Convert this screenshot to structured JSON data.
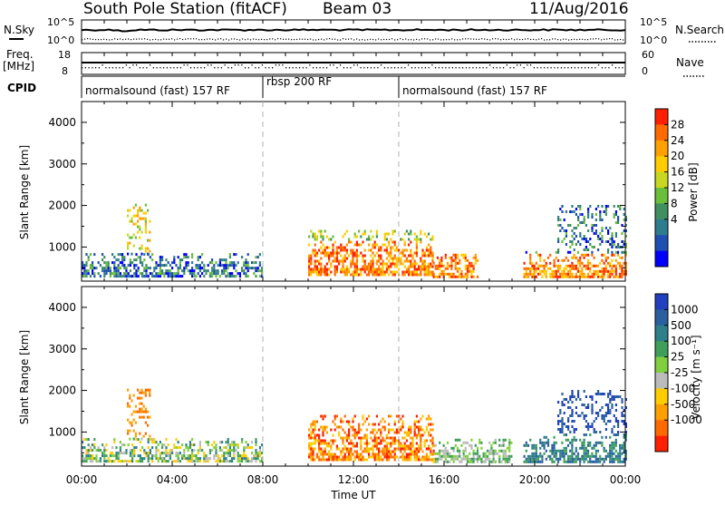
{
  "header": {
    "station": "South Pole Station (fitACF)",
    "beam": "Beam 03",
    "date": "11/Aug/2016"
  },
  "strips": {
    "nsky_label": "N.Sky",
    "nsearch_label": "N.Search",
    "nsky_ticks": [
      "10^5",
      "10^0"
    ],
    "nsearch_ticks": [
      "10^5",
      "10^0"
    ],
    "freq_label_1": "Freq.",
    "freq_label_2": "[MHz]",
    "freq_ticks": [
      "18",
      "8"
    ],
    "nave_label": "Nave",
    "nave_ticks": [
      "60",
      "0"
    ],
    "cpid_label": "CPID",
    "cpid_segments": [
      {
        "label": "normalsound (fast) 157 RF",
        "start_hour": 0,
        "end_hour": 8
      },
      {
        "label": "rbsp 200 RF",
        "start_hour": 8,
        "end_hour": 14
      },
      {
        "label": "normalsound (fast) 157 RF",
        "start_hour": 14,
        "end_hour": 24
      }
    ]
  },
  "chart_data": [
    {
      "type": "heatmap",
      "name": "power",
      "ylabel": "Slant Range [km]",
      "xlabel": "",
      "yticks": [
        1000,
        2000,
        3000,
        4000
      ],
      "ylim": [
        180,
        4500
      ],
      "xlim": [
        0,
        24
      ],
      "colorbar": {
        "label": "Power [dB]",
        "ticks": [
          "4",
          "8",
          "12",
          "16",
          "20",
          "24",
          "28"
        ],
        "colors": [
          "#0000ff",
          "#1f4fb0",
          "#2e7d8f",
          "#3f8f5f",
          "#6abe3a",
          "#c8d820",
          "#ffcc00",
          "#ffa000",
          "#ff6a00",
          "#ff2000"
        ]
      },
      "echo_regions": [
        {
          "start_hour": 0.0,
          "end_hour": 8.0,
          "range_min_km": 200,
          "range_max_km": 800,
          "dominant_level": "4-12 dB"
        },
        {
          "start_hour": 2.0,
          "end_hour": 3.0,
          "range_min_km": 800,
          "range_max_km": 2000,
          "dominant_level": "16-24 dB"
        },
        {
          "start_hour": 10.0,
          "end_hour": 15.5,
          "range_min_km": 300,
          "range_max_km": 1400,
          "dominant_level": "20-28 dB"
        },
        {
          "start_hour": 15.5,
          "end_hour": 17.5,
          "range_min_km": 250,
          "range_max_km": 800,
          "dominant_level": "24-28 dB"
        },
        {
          "start_hour": 19.5,
          "end_hour": 24.0,
          "range_min_km": 250,
          "range_max_km": 900,
          "dominant_level": "24-28 dB"
        },
        {
          "start_hour": 21.0,
          "end_hour": 24.0,
          "range_min_km": 900,
          "range_max_km": 2000,
          "dominant_level": "8-16 dB"
        }
      ]
    },
    {
      "type": "heatmap",
      "name": "velocity",
      "ylabel": "Slant Range [km]",
      "xlabel": "Time UT",
      "xticks": [
        "00:00",
        "04:00",
        "08:00",
        "12:00",
        "16:00",
        "20:00",
        "00:00"
      ],
      "yticks": [
        1000,
        2000,
        3000,
        4000
      ],
      "ylim": [
        180,
        4500
      ],
      "xlim": [
        0,
        24
      ],
      "colorbar": {
        "label": "Velocity [m s⁻¹]",
        "ticks": [
          "1000",
          "500",
          "100",
          "25",
          "-25",
          "-100",
          "-500",
          "-1000"
        ],
        "colors": [
          "#2040c0",
          "#2a5fa0",
          "#2d7f8a",
          "#3f9f5a",
          "#7fcf3f",
          "#bbbbbb",
          "#ffcc00",
          "#ff9f00",
          "#ff6a00",
          "#ff2000"
        ]
      },
      "echo_regions": [
        {
          "start_hour": 0.0,
          "end_hour": 8.0,
          "range_min_km": 200,
          "range_max_km": 800,
          "dominant_level": "-25 to 100 m/s"
        },
        {
          "start_hour": 2.0,
          "end_hour": 3.0,
          "range_min_km": 800,
          "range_max_km": 2000,
          "dominant_level": "-100 to -500 m/s"
        },
        {
          "start_hour": 10.0,
          "end_hour": 15.5,
          "range_min_km": 300,
          "range_max_km": 1400,
          "dominant_level": "-100 to -500 m/s"
        },
        {
          "start_hour": 15.5,
          "end_hour": 19.0,
          "range_min_km": 250,
          "range_max_km": 800,
          "dominant_level": "25 to 100 m/s"
        },
        {
          "start_hour": 19.5,
          "end_hour": 24.0,
          "range_min_km": 250,
          "range_max_km": 900,
          "dominant_level": "100 to 500 m/s"
        },
        {
          "start_hour": 21.0,
          "end_hour": 24.0,
          "range_min_km": 900,
          "range_max_km": 2000,
          "dominant_level": "500 to 1000 m/s"
        }
      ]
    }
  ]
}
